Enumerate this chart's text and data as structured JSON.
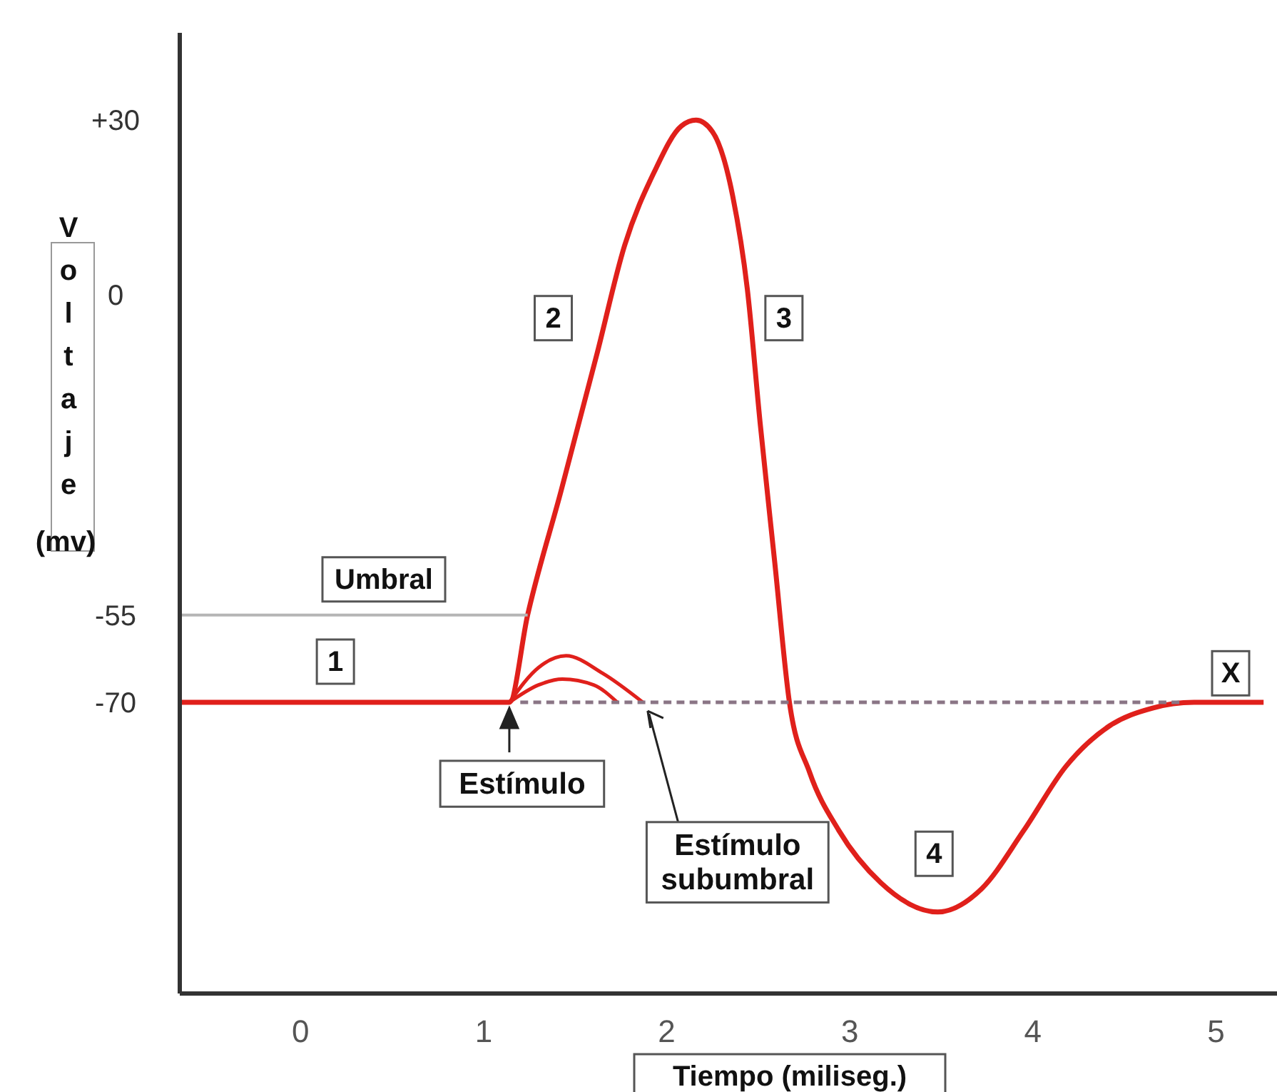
{
  "chart_data": {
    "type": "line",
    "xlabel": "Tiempo (miliseg.)",
    "ylabel": "Voltaje (mv)",
    "xlim": [
      -0.66,
      5.38
    ],
    "ylim": [
      -120,
      45
    ],
    "xticks": [
      0,
      1,
      2,
      3,
      4,
      5
    ],
    "yticks": [
      {
        "value": 30,
        "label": "+30"
      },
      0,
      -55,
      -70
    ],
    "grid": false,
    "marker": "none",
    "series": [
      {
        "color": "#e0201b",
        "x": [
          -0.66,
          1.14,
          1.24,
          1.42,
          1.62,
          1.77,
          1.93,
          2.08,
          2.16,
          2.25,
          2.36,
          2.44,
          2.51,
          2.59,
          2.67,
          2.78,
          2.94,
          3.17,
          3.48,
          3.72,
          3.95,
          4.18,
          4.42,
          4.65,
          4.88,
          5.26
        ],
        "values": [
          -70,
          -70,
          -55,
          -34,
          -10,
          8.5,
          21,
          29,
          30,
          28,
          17,
          1,
          -22,
          -46,
          -70,
          -82,
          -92,
          -101,
          -106,
          -102,
          -92,
          -81,
          -74,
          -71,
          -70,
          -70
        ]
      },
      {
        "color": "#e0201b",
        "x": [
          1.14,
          1.3,
          1.45,
          1.65,
          1.87
        ],
        "values": [
          -70,
          -64,
          -62,
          -65,
          -70
        ]
      },
      {
        "color": "#e0201b",
        "x": [
          1.14,
          1.3,
          1.43,
          1.6,
          1.73
        ],
        "values": [
          -70,
          -67,
          -66,
          -67,
          -70
        ]
      },
      {
        "color": "#8a7585",
        "line_style": "dashed",
        "x": [
          1.2,
          4.8
        ],
        "values": [
          -70,
          -70
        ]
      },
      {
        "name": "Umbral",
        "color": "#b5b5b5",
        "x": [
          -0.66,
          1.24
        ],
        "values": [
          -55,
          -55
        ]
      }
    ],
    "annotations": [
      {
        "text": "1",
        "x": 0.19,
        "y": -63
      },
      {
        "text": "2",
        "x": 1.38,
        "y": -4
      },
      {
        "text": "3",
        "x": 2.64,
        "y": -4
      },
      {
        "text": "4",
        "x": 3.46,
        "y": -96
      },
      {
        "text": "X",
        "x": 5.08,
        "y": -65
      },
      {
        "text": "Estímulo",
        "x": 1.14,
        "y": -70
      },
      {
        "text": "Estímulo subumbral",
        "x": 1.88,
        "y": -70
      }
    ]
  }
}
